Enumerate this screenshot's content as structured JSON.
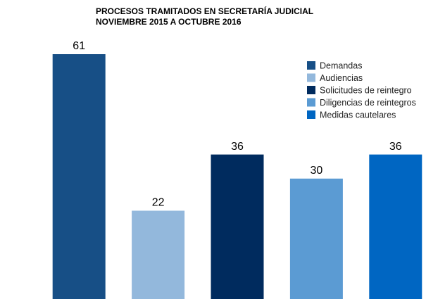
{
  "chart_data": {
    "type": "bar",
    "title": "PROCESOS TRAMITADOS EN SECRETARÍA JUDICIAL",
    "subtitle": "NOVIEMBRE 2015 A OCTUBRE 2016",
    "categories": [
      null
    ],
    "series": [
      {
        "name": "Demandas",
        "color": "#174f86",
        "values": [
          61
        ]
      },
      {
        "name": "Audiencias",
        "color": "#93b8dc",
        "values": [
          22
        ]
      },
      {
        "name": "Solicitudes de reintegro",
        "color": "#002b5e",
        "values": [
          36
        ]
      },
      {
        "name": "Diligencias de reintegros",
        "color": "#5b9bd3",
        "values": [
          30
        ]
      },
      {
        "name": "Medidas cautelares",
        "color": "#0066c2",
        "values": [
          36
        ]
      }
    ],
    "ylim": [
      0,
      61
    ],
    "legend": "upper right"
  }
}
